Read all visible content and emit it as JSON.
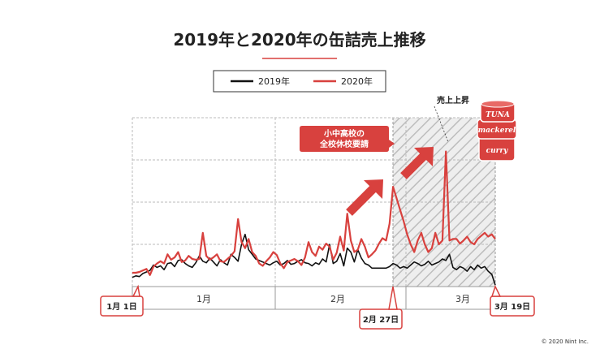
{
  "chart_data": {
    "type": "line",
    "title": "2019年と2020年の缶詰売上推移",
    "legend": {
      "placement": "top-center"
    },
    "months": [
      "1月",
      "2月",
      "3月"
    ],
    "start_label": "1月 1日",
    "end_label": "3月 19日",
    "highlight_start_label": "2月 27日",
    "callout": [
      "小中高校の",
      "全校休校要請"
    ],
    "annotation": "売上上昇",
    "grid": true,
    "series": [
      {
        "name": "2019年",
        "color": "#111111",
        "values": [
          12,
          14,
          13,
          17,
          19,
          21,
          28,
          25,
          27,
          22,
          30,
          31,
          26,
          34,
          35,
          30,
          27,
          25,
          31,
          40,
          33,
          31,
          37,
          32,
          27,
          35,
          31,
          28,
          42,
          38,
          33,
          55,
          68,
          48,
          42,
          36,
          34,
          32,
          30,
          28,
          31,
          33,
          28,
          30,
          34,
          29,
          30,
          33,
          35,
          31,
          30,
          27,
          31,
          29,
          36,
          32,
          55,
          30,
          33,
          43,
          27,
          50,
          45,
          32,
          48,
          37,
          30,
          28,
          24,
          24,
          24,
          24,
          24,
          26,
          30,
          28,
          24,
          26,
          24,
          28,
          32,
          30,
          27,
          29,
          33,
          28,
          30,
          32,
          36,
          34,
          42,
          25,
          22,
          26,
          24,
          20,
          26,
          22,
          28,
          24,
          26,
          20,
          16,
          2
        ]
      },
      {
        "name": "2020年",
        "color": "#d8413e",
        "values": [
          18,
          18,
          19,
          21,
          23,
          15,
          26,
          30,
          33,
          30,
          42,
          35,
          38,
          45,
          32,
          34,
          40,
          36,
          35,
          36,
          70,
          40,
          35,
          38,
          42,
          33,
          32,
          36,
          40,
          46,
          88,
          58,
          50,
          62,
          45,
          40,
          30,
          27,
          33,
          38,
          45,
          41,
          30,
          24,
          32,
          34,
          36,
          33,
          28,
          38,
          58,
          45,
          40,
          52,
          48,
          56,
          52,
          35,
          44,
          65,
          47,
          95,
          60,
          45,
          48,
          62,
          52,
          38,
          42,
          47,
          56,
          63,
          60,
          82,
          130,
          115,
          100,
          85,
          68,
          55,
          45,
          60,
          70,
          55,
          45,
          50,
          70,
          55,
          60,
          176,
          60,
          62,
          62,
          56,
          60,
          65,
          58,
          55,
          62,
          66,
          70,
          65,
          68,
          62
        ]
      }
    ],
    "ylim": [
      0,
      220
    ]
  },
  "footer": {
    "copyright": "© 2020 Nint Inc."
  },
  "cans": [
    "TUNA",
    "mackerel",
    "curry"
  ]
}
